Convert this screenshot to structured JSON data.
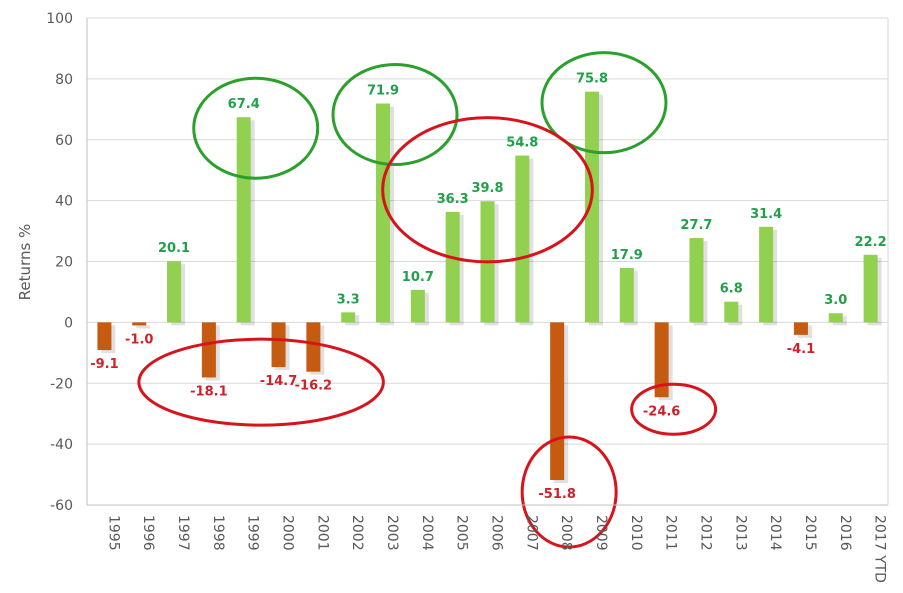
{
  "chart_data": {
    "type": "bar",
    "title": "",
    "xlabel": "",
    "ylabel": "Returns %",
    "ylim": [
      -60,
      100
    ],
    "yticks": [
      -60,
      -40,
      -20,
      0,
      20,
      40,
      60,
      80,
      100
    ],
    "grid": true,
    "legend": "none",
    "categories": [
      "1995",
      "1996",
      "1997",
      "1998",
      "1999",
      "2000",
      "2001",
      "2002",
      "2003",
      "2004",
      "2005",
      "2006",
      "2007",
      "2008",
      "2009",
      "2010",
      "2011",
      "2012",
      "2013",
      "2014",
      "2015",
      "2016",
      "2017 YTD"
    ],
    "values": [
      -9.1,
      -1.0,
      20.1,
      -18.1,
      67.4,
      -14.7,
      -16.2,
      3.3,
      71.9,
      10.7,
      36.3,
      39.8,
      54.8,
      -51.8,
      75.8,
      17.9,
      -24.6,
      27.7,
      6.8,
      31.4,
      -4.1,
      3.0,
      22.2
    ],
    "data_labels": [
      "-9.1",
      "-1.0",
      "20.1",
      "-18.1",
      "67.4",
      "-14.7",
      "-16.2",
      "3.3",
      "71.9",
      "10.7",
      "36.3",
      "39.8",
      "54.8",
      "-51.8",
      "75.8",
      "17.9",
      "-24.6",
      "27.7",
      "6.8",
      "31.4",
      "-4.1",
      "3.0",
      "22.2"
    ],
    "colors": {
      "positive_bar": "#92D050",
      "negative_bar": "#C55A11",
      "positive_label": "#21A04A",
      "negative_label": "#D0202A",
      "green_circle": "#2CA02C",
      "red_circle": "#D7141C"
    },
    "annotations": [
      {
        "type": "ellipse",
        "color": "green",
        "around": [
          "1999"
        ]
      },
      {
        "type": "ellipse",
        "color": "green",
        "around": [
          "2003"
        ]
      },
      {
        "type": "ellipse",
        "color": "green",
        "around": [
          "2009"
        ]
      },
      {
        "type": "ellipse",
        "color": "red",
        "around": [
          "2005",
          "2006",
          "2007"
        ]
      },
      {
        "type": "ellipse",
        "color": "red",
        "around": [
          "1998",
          "2000",
          "2001"
        ]
      },
      {
        "type": "ellipse",
        "color": "red",
        "around": [
          "2008"
        ]
      },
      {
        "type": "ellipse",
        "color": "red",
        "around": [
          "2011"
        ]
      }
    ]
  }
}
